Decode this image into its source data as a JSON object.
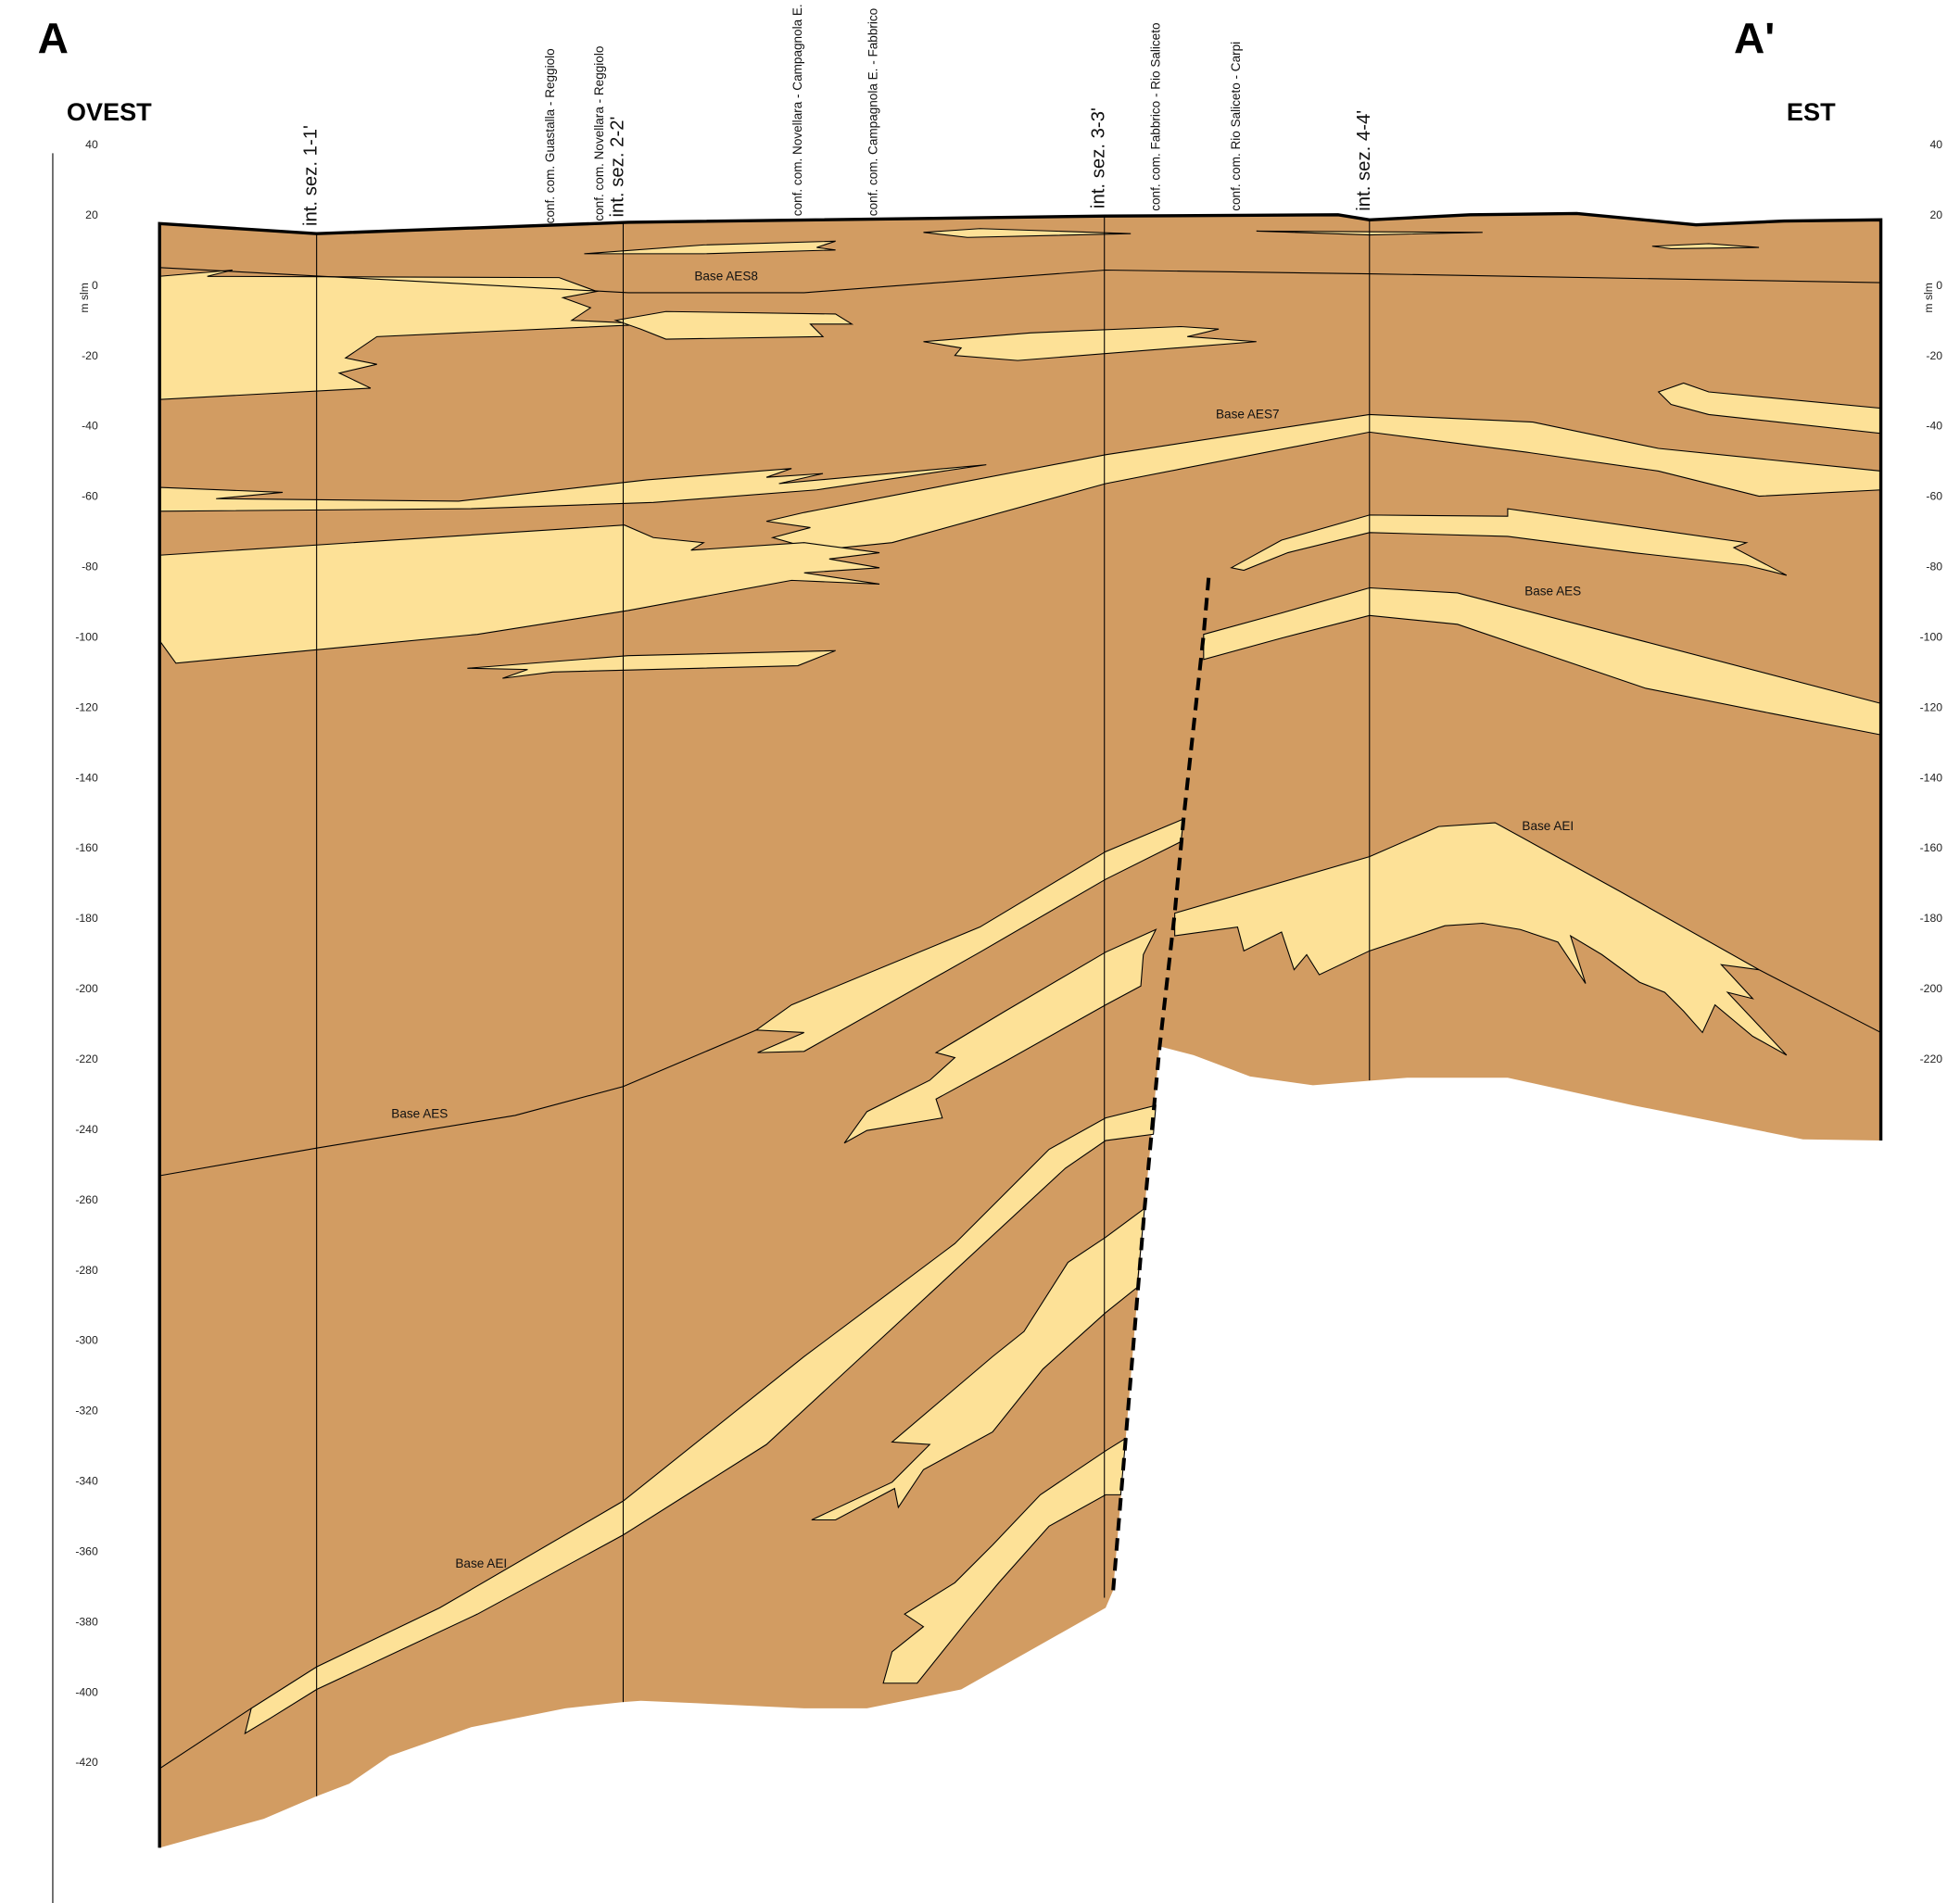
{
  "header": {
    "left_label": "A",
    "right_label": "A'",
    "west": "OVEST",
    "east": "EST"
  },
  "axis": {
    "unit": "m slm",
    "ticks": [
      40,
      20,
      0,
      -20,
      -40,
      -60,
      -80,
      -100,
      -120,
      -140,
      -160,
      -180,
      -200,
      -220,
      -240,
      -260,
      -280,
      -300,
      -320,
      -340,
      -360,
      -380,
      -400,
      -420
    ]
  },
  "sections": [
    "int. sez. 1-1'",
    "conf. com. Guastalla - Reggiolo",
    "conf. com. Novellara - Reggiolo",
    "int. sez. 2-2'",
    "conf. com. Novellara - Campagnola E.",
    "conf. com. Campagnola E. - Fabbrico",
    "int. sez. 3-3'",
    "conf. com. Fabbrico - Rio Saliceto",
    "conf. com. Rio Saliceto - Carpi",
    "int. sez. 4-4'"
  ],
  "boundaries": [
    "Base AES8",
    "Base AES7",
    "Base AES",
    "Base AEI",
    "Base AES",
    "Base AEI"
  ]
}
